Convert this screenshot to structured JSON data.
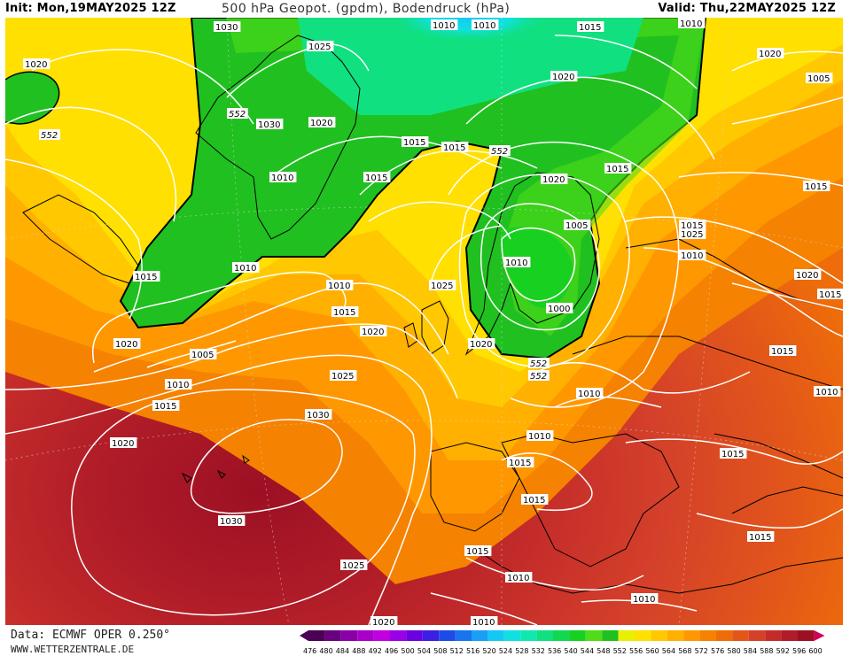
{
  "header": {
    "init": "Init: Mon,19MAY2025 12Z",
    "title": "500 hPa Geopot. (gpdm), Bodendruck (hPa)",
    "valid": "Valid: Thu,22MAY2025 12Z"
  },
  "footer": {
    "data_source": "Data: ECMWF OPER 0.250°",
    "website": "WWW.WETTERZENTRALE.DE"
  },
  "legend": {
    "unit": "gpdm",
    "values": [
      "476",
      "480",
      "484",
      "488",
      "492",
      "496",
      "500",
      "504",
      "508",
      "512",
      "516",
      "520",
      "524",
      "528",
      "532",
      "536",
      "540",
      "544",
      "548",
      "552",
      "556",
      "560",
      "564",
      "568",
      "572",
      "576",
      "580",
      "584",
      "588",
      "592",
      "596",
      "600"
    ],
    "colors": [
      "#4b0055",
      "#6a007f",
      "#8a00a6",
      "#a800c8",
      "#c000e0",
      "#9a00e6",
      "#6b00e0",
      "#3c1fe0",
      "#1e4ae8",
      "#1a74f0",
      "#19a0f5",
      "#14c8f5",
      "#10e0e0",
      "#10e8b0",
      "#10e080",
      "#10d850",
      "#18d020",
      "#50dc18",
      "#20c020",
      "#e8f000",
      "#ffe000",
      "#ffc800",
      "#ffb000",
      "#ff9800",
      "#f58200",
      "#ee6c0a",
      "#e2561a",
      "#d4402a",
      "#c42c2a",
      "#b01c28",
      "#9c1024",
      "#d0005a"
    ]
  },
  "pressure_labels": [
    {
      "text": "1030"
    },
    {
      "text": "1025"
    },
    {
      "text": "1020"
    },
    {
      "text": "1010"
    },
    {
      "text": "1010"
    },
    {
      "text": "1015"
    },
    {
      "text": "1010"
    },
    {
      "text": "1005"
    },
    {
      "text": "1020"
    },
    {
      "text": "552"
    },
    {
      "text": "1030"
    },
    {
      "text": "1020"
    },
    {
      "text": "1020"
    },
    {
      "text": "1015"
    },
    {
      "text": "552"
    },
    {
      "text": "1015"
    },
    {
      "text": "1010"
    },
    {
      "text": "1015"
    },
    {
      "text": "1015"
    },
    {
      "text": "1015"
    },
    {
      "text": "1015"
    },
    {
      "text": "1020"
    },
    {
      "text": "1005"
    },
    {
      "text": "1010"
    },
    {
      "text": "1025"
    },
    {
      "text": "1020"
    },
    {
      "text": "1010"
    },
    {
      "text": "552"
    },
    {
      "text": "1015"
    },
    {
      "text": "1000"
    },
    {
      "text": "1010"
    },
    {
      "text": "1025"
    },
    {
      "text": "1015"
    },
    {
      "text": "1020"
    },
    {
      "text": "1020"
    },
    {
      "text": "552"
    },
    {
      "text": "1010"
    },
    {
      "text": "1010"
    },
    {
      "text": "1015"
    },
    {
      "text": "1005"
    },
    {
      "text": "1010"
    },
    {
      "text": "1015"
    },
    {
      "text": "1025"
    },
    {
      "text": "1010"
    },
    {
      "text": "1030"
    },
    {
      "text": "1020"
    },
    {
      "text": "1015"
    },
    {
      "text": "1020"
    },
    {
      "text": "1015"
    },
    {
      "text": "1015"
    },
    {
      "text": "1015"
    },
    {
      "text": "1010"
    },
    {
      "text": "1030"
    },
    {
      "text": "1015"
    },
    {
      "text": "1025"
    },
    {
      "text": "1010"
    },
    {
      "text": "1015"
    },
    {
      "text": "1010"
    },
    {
      "text": "1020"
    },
    {
      "text": "1010"
    },
    {
      "text": "552"
    }
  ]
}
